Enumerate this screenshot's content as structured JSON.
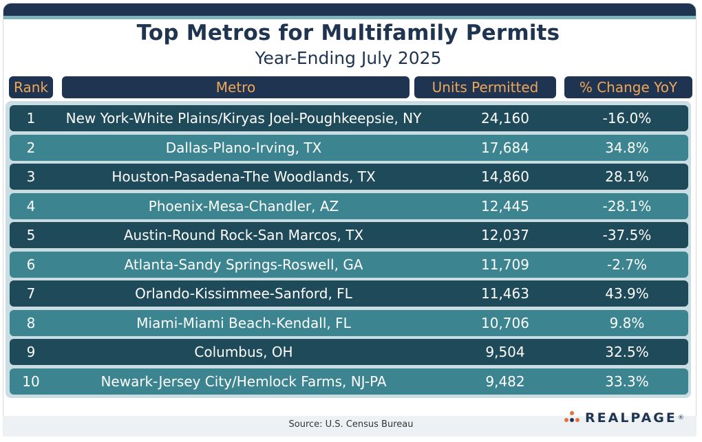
{
  "chart_data": {
    "type": "table",
    "title": "Top Metros for Multifamily Permits",
    "subtitle": "Year-Ending July 2025",
    "columns": [
      "Rank",
      "Metro",
      "Units Permitted",
      "% Change YoY"
    ],
    "rows": [
      {
        "rank": "1",
        "metro": "New York-White Plains/Kiryas Joel-Poughkeepsie, NY",
        "units": "24,160",
        "change": "-16.0%"
      },
      {
        "rank": "2",
        "metro": "Dallas-Plano-Irving, TX",
        "units": "17,684",
        "change": "34.8%"
      },
      {
        "rank": "3",
        "metro": "Houston-Pasadena-The Woodlands, TX",
        "units": "14,860",
        "change": "28.1%"
      },
      {
        "rank": "4",
        "metro": "Phoenix-Mesa-Chandler, AZ",
        "units": "12,445",
        "change": "-28.1%"
      },
      {
        "rank": "5",
        "metro": "Austin-Round Rock-San Marcos, TX",
        "units": "12,037",
        "change": "-37.5%"
      },
      {
        "rank": "6",
        "metro": "Atlanta-Sandy Springs-Roswell, GA",
        "units": "11,709",
        "change": "-2.7%"
      },
      {
        "rank": "7",
        "metro": "Orlando-Kissimmee-Sanford, FL",
        "units": "11,463",
        "change": "43.9%"
      },
      {
        "rank": "8",
        "metro": "Miami-Miami Beach-Kendall, FL",
        "units": "10,706",
        "change": "9.8%"
      },
      {
        "rank": "9",
        "metro": "Columbus, OH",
        "units": "9,504",
        "change": "32.5%"
      },
      {
        "rank": "10",
        "metro": "Newark-Jersey City/Hemlock Farms, NJ-PA",
        "units": "9,482",
        "change": "33.3%"
      }
    ],
    "source": "Source: U.S. Census Bureau"
  },
  "logo": {
    "text": "REALPAGE",
    "mark": "®"
  },
  "colors": {
    "navy": "#1e3450",
    "row_dark": "#1e4a5a",
    "row_light": "#3c8590",
    "header_text": "#f0a85a",
    "table_bg": "#c9dde2",
    "dots": [
      "#e8703a",
      "#1e3450"
    ]
  }
}
